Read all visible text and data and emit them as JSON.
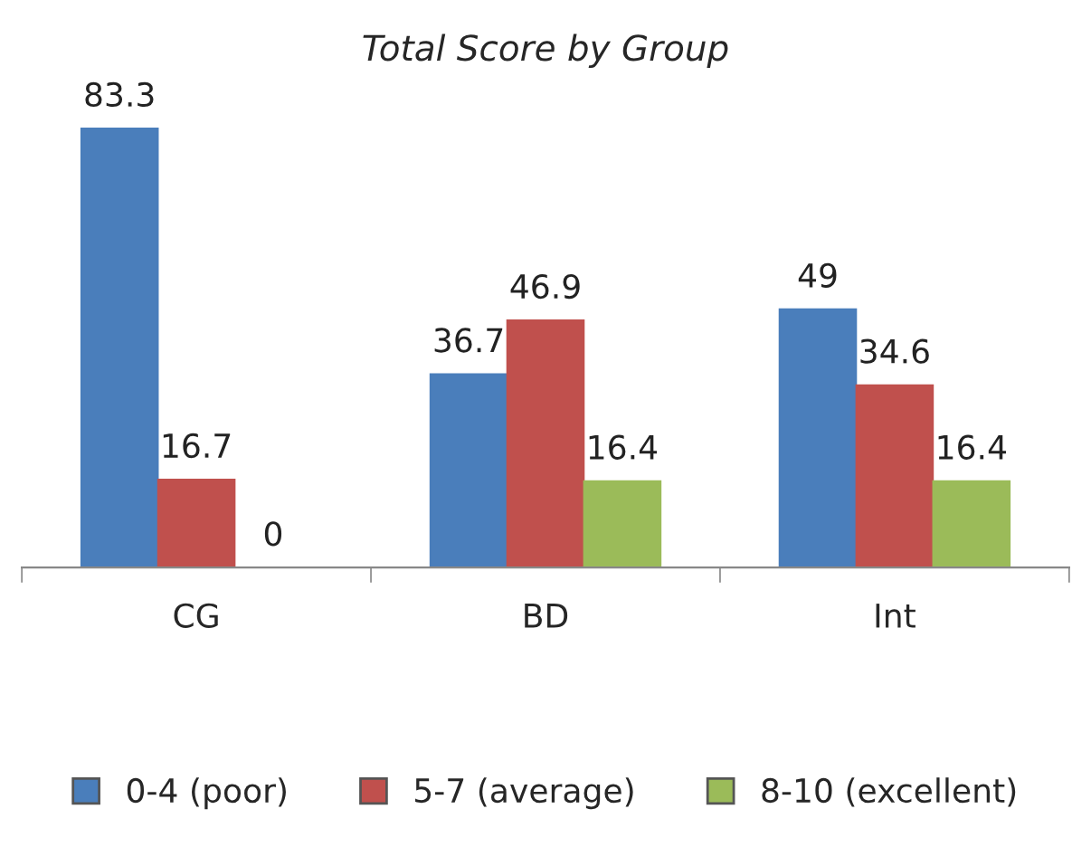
{
  "chart_data": {
    "type": "bar",
    "title": "Total Score by Group",
    "categories": [
      "CG",
      "BD",
      "Int"
    ],
    "series": [
      {
        "name": "0-4 (poor)",
        "color": "#4a7ebb",
        "values": [
          83.3,
          36.7,
          49
        ]
      },
      {
        "name": "5-7 (average)",
        "color": "#c0504d",
        "values": [
          16.7,
          46.9,
          34.6
        ]
      },
      {
        "name": "8-10 (excellent)",
        "color": "#9bbb59",
        "values": [
          0,
          16.4,
          16.4
        ]
      }
    ],
    "data_labels": true,
    "legend": "bottom",
    "grid": false
  }
}
